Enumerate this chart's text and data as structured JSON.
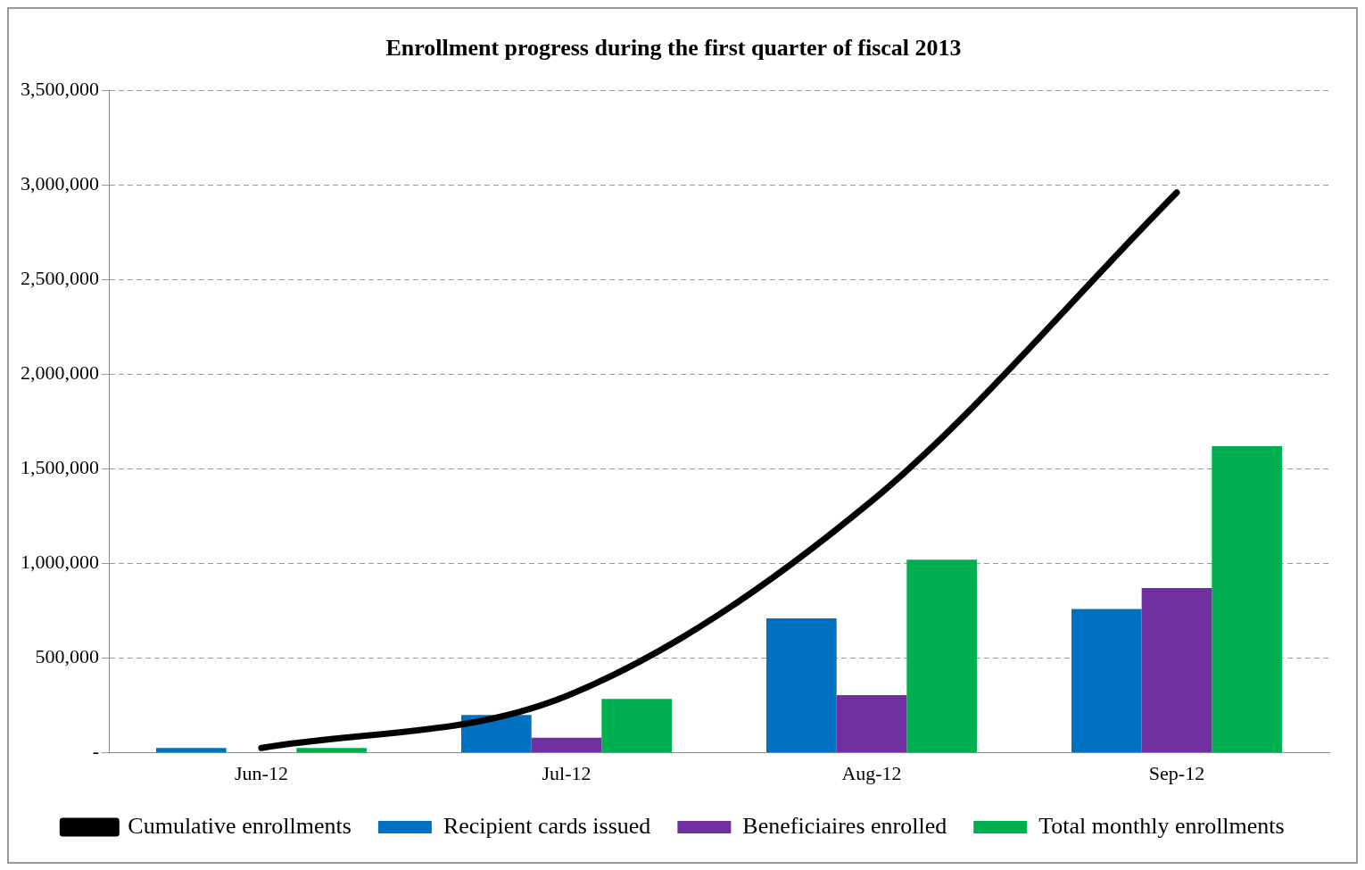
{
  "chart_data": {
    "type": "bar",
    "title": "Enrollment progress during the first quarter of fiscal 2013",
    "categories": [
      "Jun-12",
      "Jul-12",
      "Aug-12",
      "Sep-12"
    ],
    "series": [
      {
        "name": "Recipient cards issued",
        "color": "#0070c0",
        "values": [
          25000,
          200000,
          710000,
          760000
        ]
      },
      {
        "name": "Beneficiaires enrolled",
        "color": "#7030a0",
        "values": [
          null,
          80000,
          305000,
          870000
        ]
      },
      {
        "name": "Total monthly enrollments",
        "color": "#00b050",
        "values": [
          25000,
          285000,
          1020000,
          1620000
        ]
      },
      {
        "name": "Cumulative enrollments",
        "color": "#000000",
        "type": "line",
        "values": [
          25000,
          300000,
          1330000,
          2960000
        ]
      }
    ],
    "ylim": [
      0,
      3500000
    ],
    "yticks": [
      {
        "value": 0,
        "label": "-"
      },
      {
        "value": 500000,
        "label": "500,000"
      },
      {
        "value": 1000000,
        "label": "1,000,000"
      },
      {
        "value": 1500000,
        "label": "1,500,000"
      },
      {
        "value": 2000000,
        "label": "2,000,000"
      },
      {
        "value": 2500000,
        "label": "2,500,000"
      },
      {
        "value": 3000000,
        "label": "3,000,000"
      },
      {
        "value": 3500000,
        "label": "3,500,000"
      }
    ],
    "grid": "y",
    "legend": "bottom",
    "marker": "none",
    "line_style": "solid"
  }
}
